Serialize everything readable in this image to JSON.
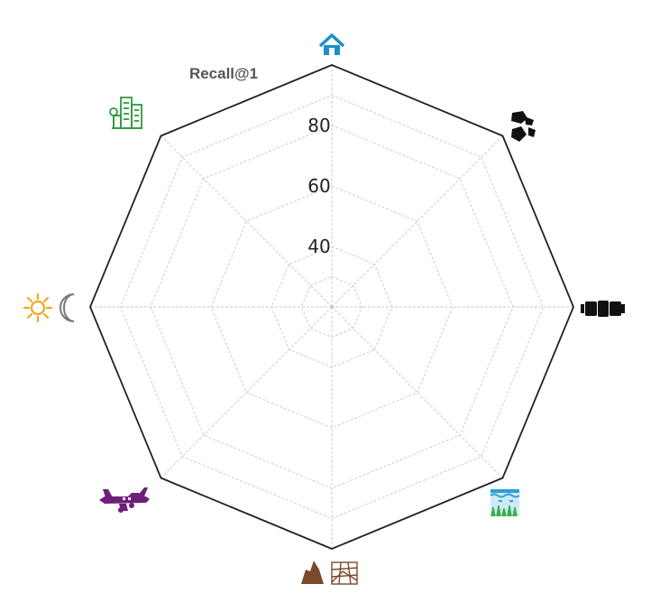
{
  "chart_data": {
    "type": "radar",
    "title": "",
    "metric_label": "Recall@1",
    "r_ticks": [
      "40",
      "60",
      "80"
    ],
    "r_range": [
      20,
      100
    ],
    "r_grid_values": [
      40,
      60,
      80
    ],
    "grid": true,
    "axes": [
      {
        "icon": "house-icon",
        "color": "#1a8fc9"
      },
      {
        "icon": "rocks-icon",
        "color": "#111111"
      },
      {
        "icon": "panorama-camera-icon",
        "color": "#111111"
      },
      {
        "icon": "water-grass-icon",
        "color": "#41b6e6"
      },
      {
        "icon": "mountain-terrain-icon",
        "color": "#7a4a2a"
      },
      {
        "icon": "airplane-icon",
        "color": "#6e1f7a"
      },
      {
        "icon": "day-night-icon",
        "color": "#f5a623"
      },
      {
        "icon": "city-buildings-icon",
        "color": "#2e9a3e"
      }
    ],
    "colors": {
      "outline": "#222222",
      "grid": "#c8c8c8"
    }
  }
}
